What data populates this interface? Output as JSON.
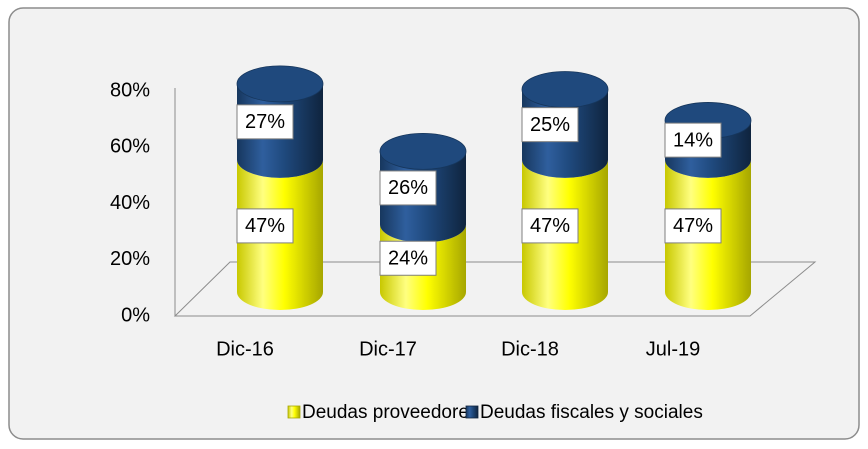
{
  "chart_data": {
    "type": "cylinder_stacked_bar",
    "categories": [
      "Dic-16",
      "Dic-17",
      "Dic-18",
      "Jul-19"
    ],
    "series": [
      {
        "name": "Deudas proveedores",
        "color": "#ffff00",
        "values": [
          47,
          24,
          47,
          47
        ],
        "value_labels": [
          "47%",
          "24%",
          "47%",
          "47%"
        ]
      },
      {
        "name": "Deudas fiscales y sociales",
        "color": "#1f497d",
        "values": [
          27,
          26,
          25,
          14
        ],
        "value_labels": [
          "27%",
          "26%",
          "25%",
          "14%"
        ]
      }
    ],
    "ylim": [
      0,
      80
    ],
    "yticks": [
      {
        "value": 0,
        "label": "0%"
      },
      {
        "value": 20,
        "label": "20%"
      },
      {
        "value": 40,
        "label": "40%"
      },
      {
        "value": 60,
        "label": "60%"
      },
      {
        "value": 80,
        "label": "80%"
      }
    ],
    "legend": "bottom"
  }
}
